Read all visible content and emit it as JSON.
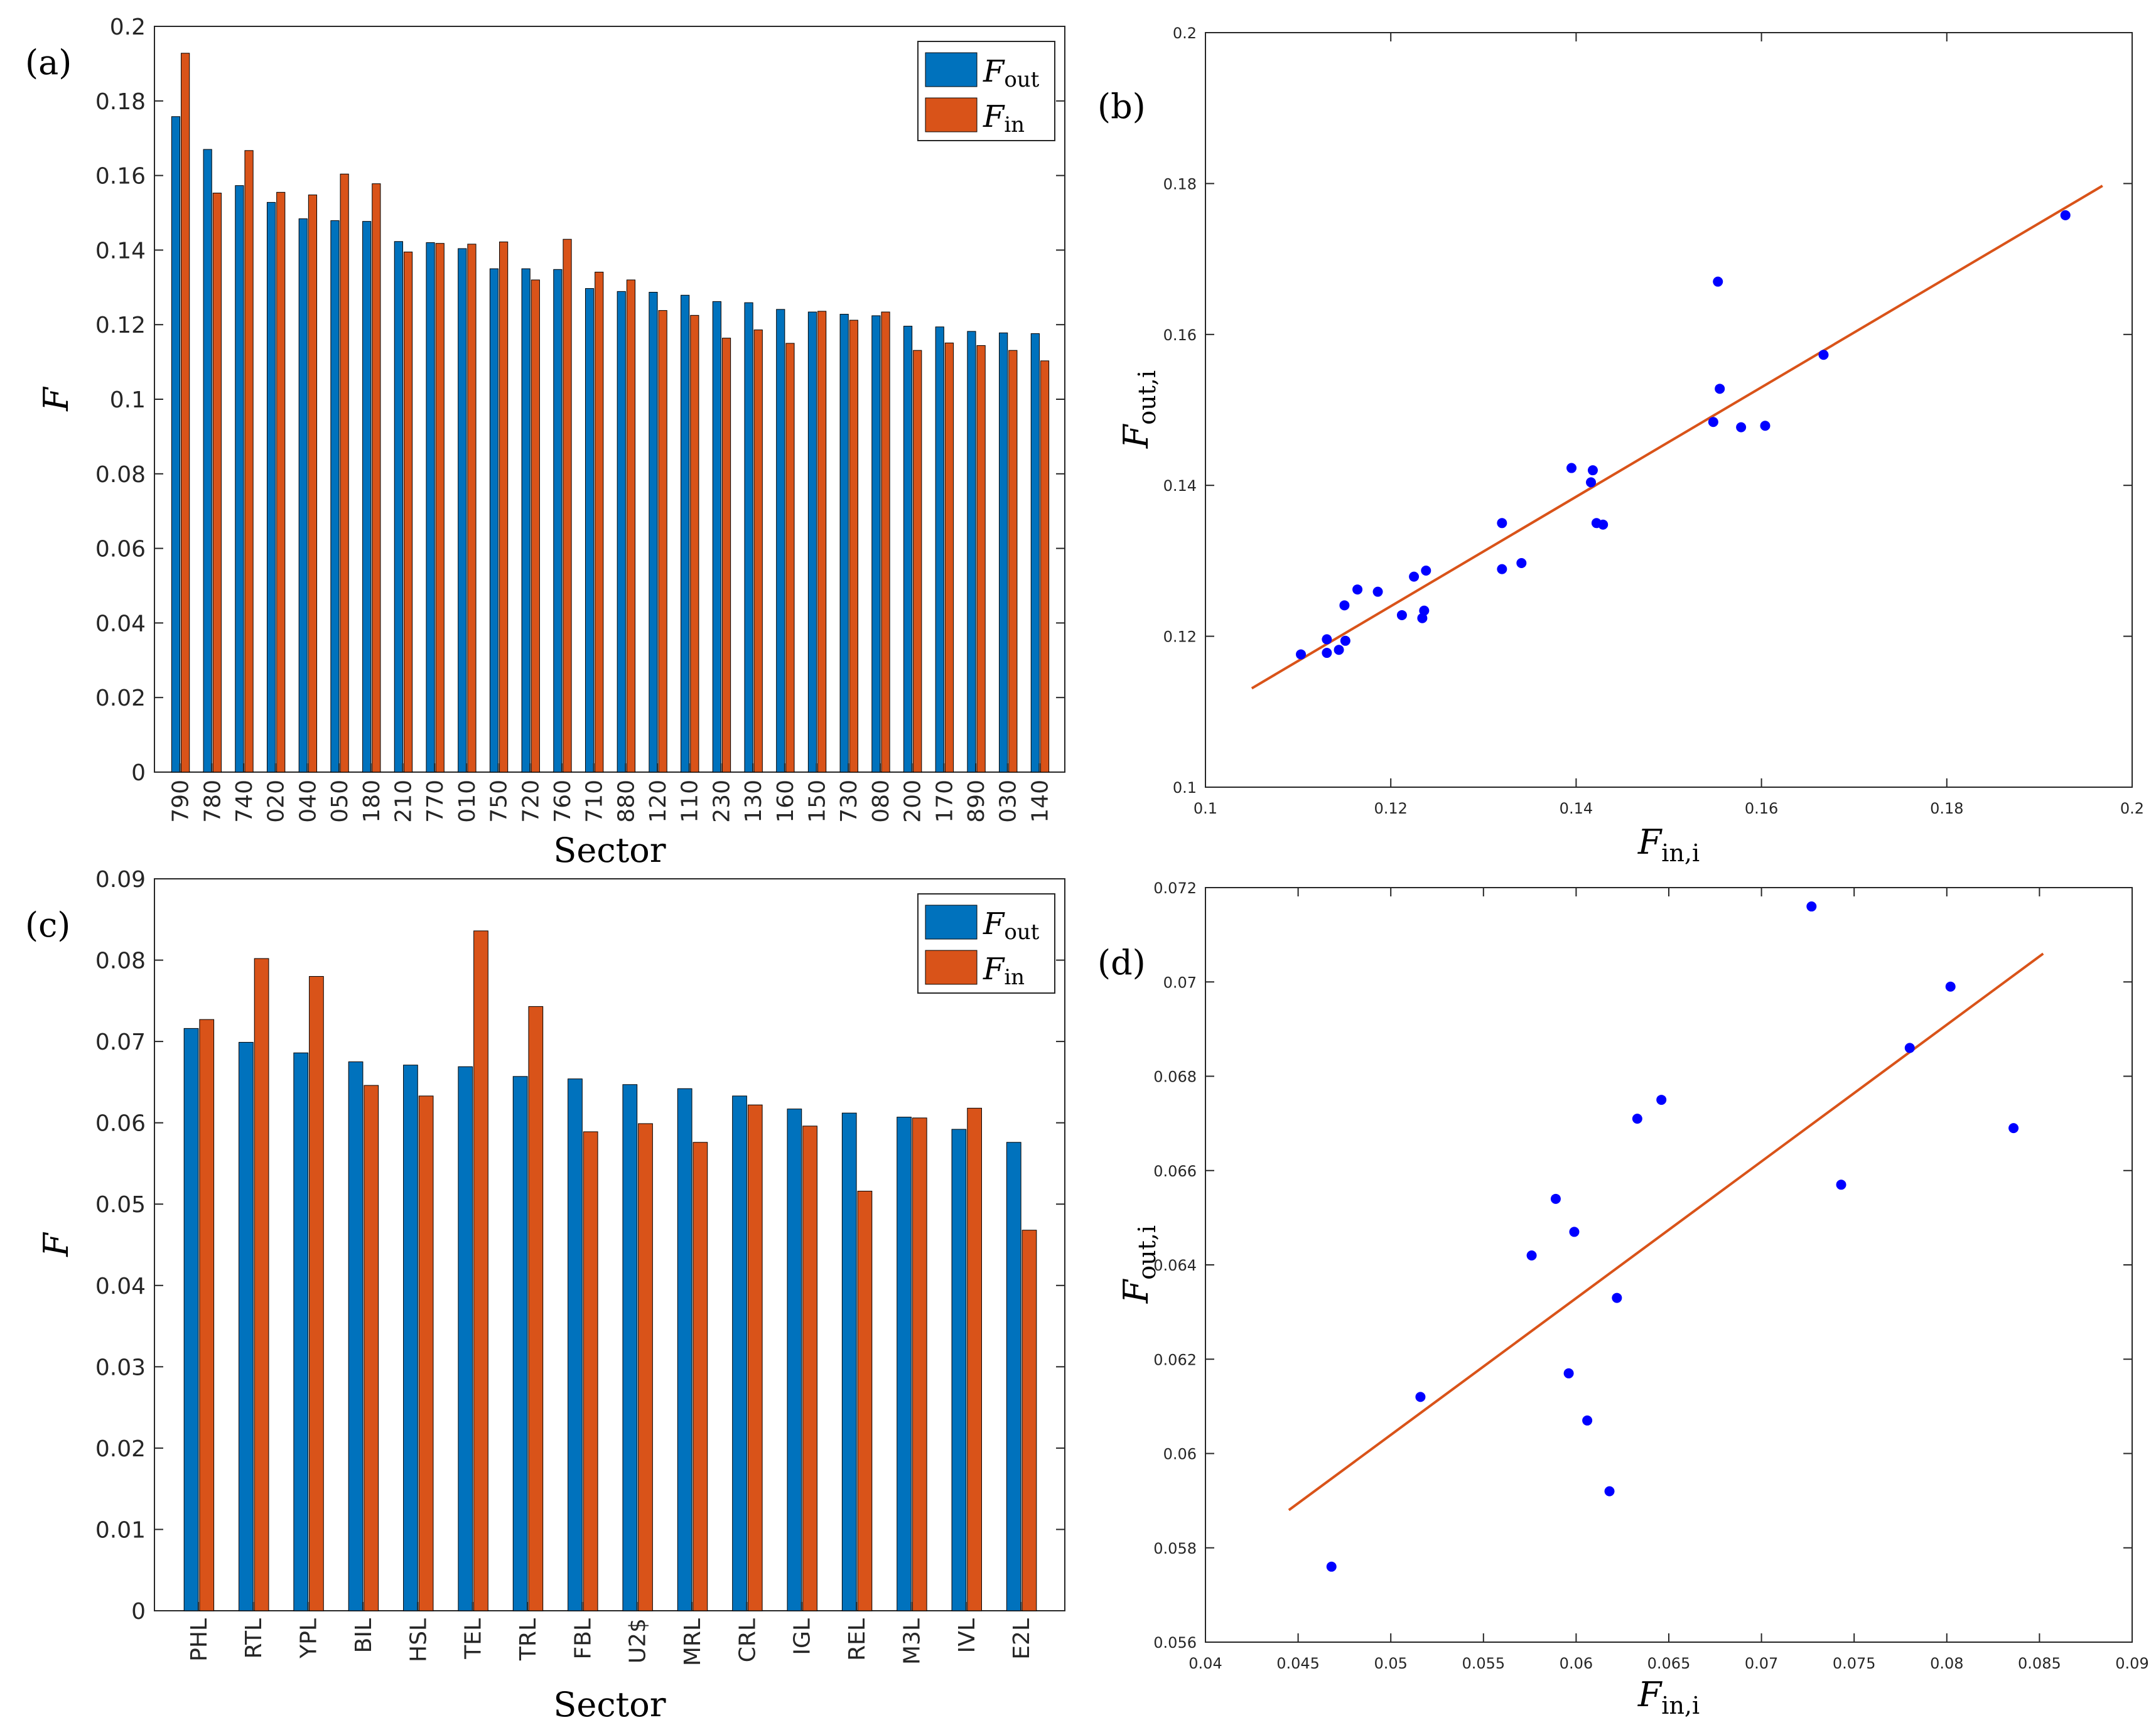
{
  "colors": {
    "out": "#0072BD",
    "in": "#D95319",
    "fit": "#D95319",
    "dot": "#0000FF"
  },
  "chart_data": [
    {
      "panel": "(a)",
      "type": "bar",
      "xlabel": "Sector",
      "ylabel": "F",
      "ylim": [
        0,
        0.2
      ],
      "yticks": [
        "0",
        "0.02",
        "0.04",
        "0.06",
        "0.08",
        "0.1",
        "0.12",
        "0.14",
        "0.16",
        "0.18",
        "0.2"
      ],
      "legend": {
        "position": "top-right",
        "out_label": "F",
        "out_sub": "out",
        "in_label": "F",
        "in_sub": "in"
      },
      "categories": [
        "790",
        "780",
        "740",
        "020",
        "040",
        "050",
        "180",
        "210",
        "770",
        "010",
        "750",
        "720",
        "760",
        "710",
        "880",
        "120",
        "110",
        "230",
        "130",
        "160",
        "150",
        "730",
        "080",
        "200",
        "170",
        "890",
        "030",
        "140"
      ],
      "series": [
        {
          "name": "F_out",
          "values": [
            0.1758,
            0.167,
            0.1573,
            0.1528,
            0.1484,
            0.1479,
            0.1477,
            0.1423,
            0.142,
            0.1404,
            0.135,
            0.135,
            0.1348,
            0.1297,
            0.1289,
            0.1287,
            0.1279,
            0.1262,
            0.1259,
            0.1241,
            0.1234,
            0.1228,
            0.1224,
            0.1196,
            0.1194,
            0.1182,
            0.1178,
            0.1176
          ]
        },
        {
          "name": "F_in",
          "values": [
            0.1928,
            0.1553,
            0.1667,
            0.1555,
            0.1548,
            0.1604,
            0.1578,
            0.1395,
            0.1418,
            0.1416,
            0.1422,
            0.132,
            0.1429,
            0.1341,
            0.132,
            0.1238,
            0.1225,
            0.1164,
            0.1186,
            0.115,
            0.1236,
            0.1212,
            0.1234,
            0.1131,
            0.1151,
            0.1144,
            0.1131,
            0.1103
          ]
        }
      ]
    },
    {
      "panel": "(b)",
      "type": "scatter",
      "xlabel": "F",
      "xlabel_sub": "in,i",
      "ylabel": "F",
      "ylabel_sub": "out,i",
      "xlim": [
        0.1,
        0.2
      ],
      "ylim": [
        0.1,
        0.2
      ],
      "xticks": [
        "0.1",
        "0.12",
        "0.14",
        "0.16",
        "0.18",
        "0.2"
      ],
      "yticks": [
        "0.1",
        "0.12",
        "0.14",
        "0.16",
        "0.18",
        "0.2"
      ],
      "points": [
        [
          0.1928,
          0.1758
        ],
        [
          0.1553,
          0.167
        ],
        [
          0.1667,
          0.1573
        ],
        [
          0.1555,
          0.1528
        ],
        [
          0.1548,
          0.1484
        ],
        [
          0.1604,
          0.1479
        ],
        [
          0.1578,
          0.1477
        ],
        [
          0.1395,
          0.1423
        ],
        [
          0.1418,
          0.142
        ],
        [
          0.1416,
          0.1404
        ],
        [
          0.1422,
          0.135
        ],
        [
          0.132,
          0.135
        ],
        [
          0.1429,
          0.1348
        ],
        [
          0.1341,
          0.1297
        ],
        [
          0.132,
          0.1289
        ],
        [
          0.1238,
          0.1287
        ],
        [
          0.1225,
          0.1279
        ],
        [
          0.1164,
          0.1262
        ],
        [
          0.1186,
          0.1259
        ],
        [
          0.115,
          0.1241
        ],
        [
          0.1236,
          0.1234
        ],
        [
          0.1212,
          0.1228
        ],
        [
          0.1234,
          0.1224
        ],
        [
          0.1131,
          0.1196
        ],
        [
          0.1151,
          0.1194
        ],
        [
          0.1144,
          0.1182
        ],
        [
          0.1131,
          0.1178
        ],
        [
          0.1103,
          0.1176
        ]
      ],
      "fit_line": [
        [
          0.105,
          0.1131
        ],
        [
          0.1968,
          0.1797
        ]
      ]
    },
    {
      "panel": "(c)",
      "type": "bar",
      "xlabel": "Sector",
      "ylabel": "F",
      "ylim": [
        0,
        0.09
      ],
      "yticks": [
        "0",
        "0.01",
        "0.02",
        "0.03",
        "0.04",
        "0.05",
        "0.06",
        "0.07",
        "0.08",
        "0.09"
      ],
      "legend": {
        "position": "top-right",
        "out_label": "F",
        "out_sub": "out",
        "in_label": "F",
        "in_sub": "in"
      },
      "categories": [
        "PHL",
        "RTL",
        "YPL",
        "BIL",
        "HSL",
        "TEL",
        "TRL",
        "FBL",
        "U2$",
        "MRL",
        "CRL",
        "IGL",
        "REL",
        "M3L",
        "IVL",
        "E2L"
      ],
      "series": [
        {
          "name": "F_out",
          "values": [
            0.0716,
            0.0699,
            0.0686,
            0.0675,
            0.0671,
            0.0669,
            0.0657,
            0.0654,
            0.0647,
            0.0642,
            0.0633,
            0.0617,
            0.0612,
            0.0607,
            0.0592,
            0.0576
          ]
        },
        {
          "name": "F_in",
          "values": [
            0.0727,
            0.0802,
            0.078,
            0.0646,
            0.0633,
            0.0836,
            0.0743,
            0.0589,
            0.0599,
            0.0576,
            0.0622,
            0.0596,
            0.0516,
            0.0606,
            0.0618,
            0.0468
          ]
        }
      ]
    },
    {
      "panel": "(d)",
      "type": "scatter",
      "xlabel": "F",
      "xlabel_sub": "in,i",
      "ylabel": "F",
      "ylabel_sub": "out,i",
      "xlim": [
        0.04,
        0.09
      ],
      "ylim": [
        0.056,
        0.072
      ],
      "xticks": [
        "0.04",
        "0.045",
        "0.05",
        "0.055",
        "0.06",
        "0.065",
        "0.07",
        "0.075",
        "0.08",
        "0.085",
        "0.09"
      ],
      "yticks": [
        "0.056",
        "0.058",
        "0.06",
        "0.062",
        "0.064",
        "0.066",
        "0.068",
        "0.07",
        "0.072"
      ],
      "points": [
        [
          0.0727,
          0.0716
        ],
        [
          0.0802,
          0.0699
        ],
        [
          0.078,
          0.0686
        ],
        [
          0.0646,
          0.0675
        ],
        [
          0.0633,
          0.0671
        ],
        [
          0.0836,
          0.0669
        ],
        [
          0.0743,
          0.0657
        ],
        [
          0.0589,
          0.0654
        ],
        [
          0.0599,
          0.0647
        ],
        [
          0.0576,
          0.0642
        ],
        [
          0.0622,
          0.0633
        ],
        [
          0.0596,
          0.0617
        ],
        [
          0.0516,
          0.0612
        ],
        [
          0.0606,
          0.0607
        ],
        [
          0.0618,
          0.0592
        ],
        [
          0.0468,
          0.0576
        ]
      ],
      "fit_line": [
        [
          0.0445,
          0.0588
        ],
        [
          0.0852,
          0.0706
        ]
      ]
    }
  ]
}
